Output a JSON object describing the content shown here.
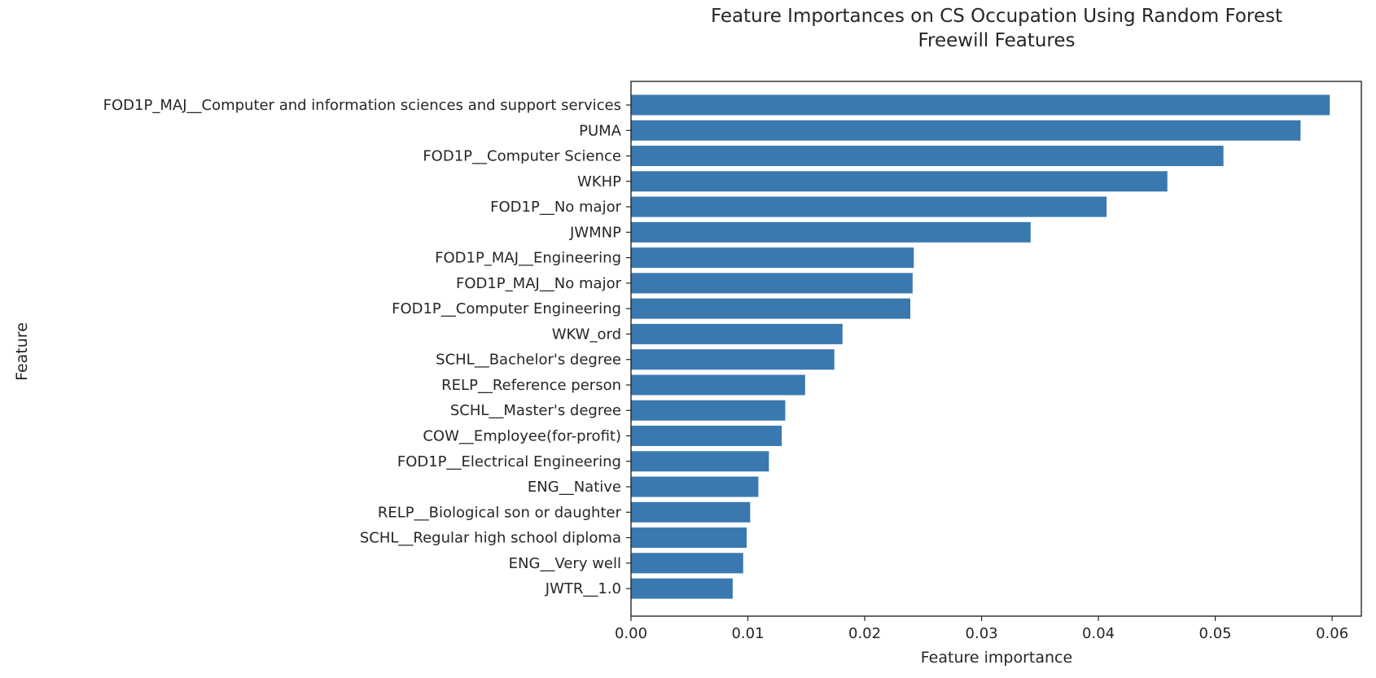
{
  "chart_data": {
    "type": "bar",
    "orientation": "horizontal",
    "title": "Feature Importances on CS Occupation Using Random Forest",
    "subtitle": "Freewill Features",
    "xlabel": "Feature importance",
    "ylabel": "Feature",
    "xlim": [
      0,
      0.0625
    ],
    "xticks": [
      0.0,
      0.01,
      0.02,
      0.03,
      0.04,
      0.05,
      0.06
    ],
    "xtick_labels": [
      "0.00",
      "0.01",
      "0.02",
      "0.03",
      "0.04",
      "0.05",
      "0.06"
    ],
    "grid": false,
    "bar_color": "#3A78B0",
    "categories": [
      "FOD1P_MAJ__Computer and information sciences and support services",
      "PUMA",
      "FOD1P__Computer Science",
      "WKHP",
      "FOD1P__No major",
      "JWMNP",
      "FOD1P_MAJ__Engineering",
      "FOD1P_MAJ__No major",
      "FOD1P__Computer Engineering",
      "WKW_ord",
      "SCHL__Bachelor's degree",
      "RELP__Reference person",
      "SCHL__Master's degree",
      "COW__Employee(for-profit)",
      "FOD1P__Electrical Engineering",
      "ENG__Native",
      "RELP__Biological son or daughter",
      "SCHL__Regular high school diploma",
      "ENG__Very well",
      "JWTR__1.0"
    ],
    "values": [
      0.0598,
      0.0573,
      0.0507,
      0.0459,
      0.0407,
      0.0342,
      0.0242,
      0.0241,
      0.0239,
      0.0181,
      0.0174,
      0.0149,
      0.0132,
      0.0129,
      0.0118,
      0.0109,
      0.0102,
      0.0099,
      0.0096,
      0.0087
    ]
  }
}
